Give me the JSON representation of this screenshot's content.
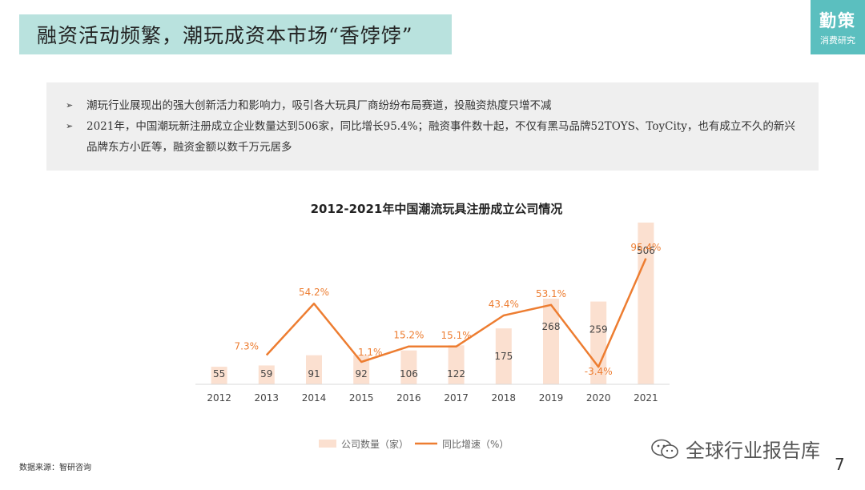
{
  "header": {
    "title": "融资活动频繁，潮玩成资本市场“香饽饽”",
    "brand_main": "勤策",
    "brand_sub": "消费研究"
  },
  "notes": [
    "潮玩行业展现出的强大创新活力和影响力，吸引各大玩具厂商纷纷布局赛道，投融资热度只增不减",
    "2021年，中国潮玩新注册成立企业数量达到506家，同比增长95.4%；融资事件数十起，不仅有黑马品牌52TOYS、ToyCity，也有成立不久的新兴品牌东方小匠等，融资金额以数千万元居多"
  ],
  "colors": {
    "bar": "#fbe0d0",
    "line": "#ed7d31",
    "title_bg": "#b9e2de",
    "brand_bg": "#5bbfbf"
  },
  "chart_data": {
    "type": "bar",
    "title": "2012-2021年中国潮流玩具注册成立公司情况",
    "categories": [
      "2012",
      "2013",
      "2014",
      "2015",
      "2016",
      "2017",
      "2018",
      "2019",
      "2020",
      "2021"
    ],
    "series": [
      {
        "name": "公司数量（家）",
        "type": "bar",
        "values": [
          55,
          59,
          91,
          92,
          106,
          122,
          175,
          268,
          259,
          506
        ],
        "labels": [
          "55",
          "59",
          "91",
          "92",
          "106",
          "122",
          "175",
          "268",
          "259",
          "506"
        ]
      },
      {
        "name": "同比增速（%）",
        "type": "line",
        "values": [
          null,
          7.3,
          54.2,
          1.1,
          15.2,
          15.1,
          43.4,
          53.1,
          -3.4,
          95.4
        ],
        "labels": [
          "",
          "7.3%",
          "54.2%",
          "1.1%",
          "15.2%",
          "15.1%",
          "43.4%",
          "53.1%",
          "-3.4%",
          "95.4%"
        ]
      }
    ],
    "legend_position": "bottom",
    "grid": false
  },
  "footer": {
    "source": "数据来源：智研咨询",
    "watermark": "全球行业报告库",
    "page_number": "7"
  }
}
